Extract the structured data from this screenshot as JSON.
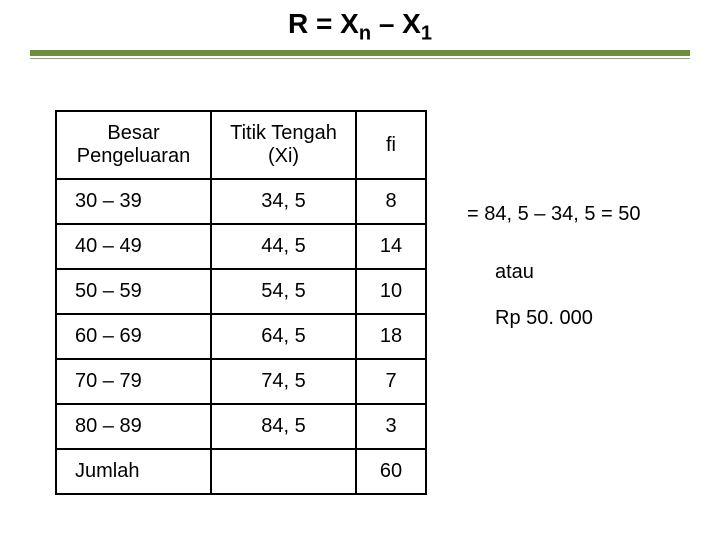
{
  "title_html": "R = X<sub>n</sub> – X<sub>1</sub>",
  "table": {
    "columns": [
      "Besar Pengeluaran",
      "Titik Tengah (Xi)",
      "fi"
    ],
    "rows": [
      [
        "30 – 39",
        "34, 5",
        "8"
      ],
      [
        "40 – 49",
        "44, 5",
        "14"
      ],
      [
        "50 – 59",
        "54, 5",
        "10"
      ],
      [
        "60 – 69",
        "64, 5",
        "18"
      ],
      [
        "70 – 79",
        "74, 5",
        "7"
      ],
      [
        "80 – 89",
        "84, 5",
        "3"
      ]
    ],
    "footer": [
      "Jumlah",
      "",
      "60"
    ]
  },
  "side": {
    "equation": "=   84, 5 – 34, 5 = 50",
    "atau": "atau",
    "rp": "Rp 50. 000"
  },
  "styling": {
    "divider_color": "#6b8f3a",
    "title_fontsize": 28,
    "cell_fontsize": 20,
    "border_color": "#000000",
    "background_color": "#ffffff"
  }
}
